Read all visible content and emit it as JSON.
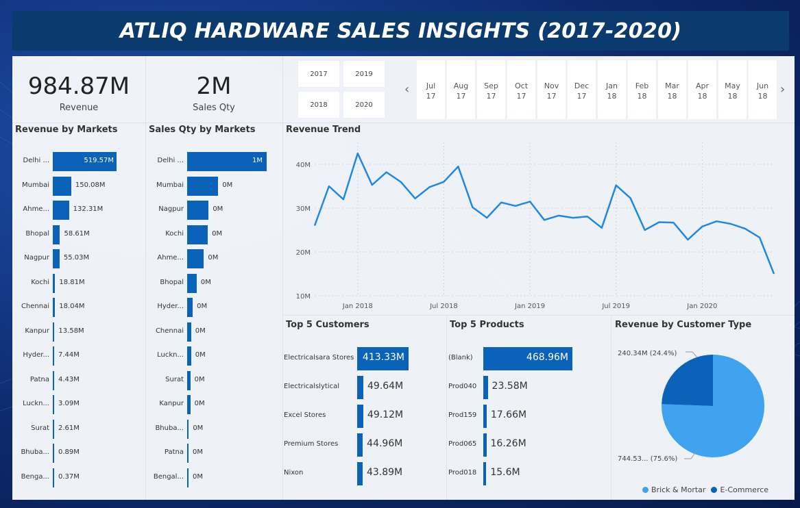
{
  "title": "ATLIQ HARDWARE SALES INSIGHTS (2017-2020)",
  "kpis": {
    "revenue": {
      "value": "984.87M",
      "label": "Revenue"
    },
    "sales_qty": {
      "value": "2M",
      "label": "Sales Qty"
    }
  },
  "year_slicer": [
    "2017",
    "2019",
    "2018",
    "2020"
  ],
  "month_slicer": [
    {
      "m": "Jul",
      "y": "17"
    },
    {
      "m": "Aug",
      "y": "17"
    },
    {
      "m": "Sep",
      "y": "17"
    },
    {
      "m": "Oct",
      "y": "17"
    },
    {
      "m": "Nov",
      "y": "17"
    },
    {
      "m": "Dec",
      "y": "17"
    },
    {
      "m": "Jan",
      "y": "18"
    },
    {
      "m": "Feb",
      "y": "18"
    },
    {
      "m": "Mar",
      "y": "18"
    },
    {
      "m": "Apr",
      "y": "18"
    },
    {
      "m": "May",
      "y": "18"
    },
    {
      "m": "Jun",
      "y": "18"
    }
  ],
  "icons": {
    "prev": "chevron-left-icon",
    "next": "chevron-right-icon"
  },
  "colors": {
    "bar": "#0a63b8",
    "line": "#1e88e5",
    "pie_brick": "#3fa3f0",
    "pie_ecom": "#0a63b8",
    "title_bg": "#0b3a6e"
  },
  "revenue_by_markets": {
    "title": "Revenue by Markets",
    "rows": [
      {
        "cat": "Delhi ...",
        "value": 519.57,
        "label": "519.57M"
      },
      {
        "cat": "Mumbai",
        "value": 150.08,
        "label": "150.08M"
      },
      {
        "cat": "Ahme...",
        "value": 132.31,
        "label": "132.31M"
      },
      {
        "cat": "Bhopal",
        "value": 58.61,
        "label": "58.61M"
      },
      {
        "cat": "Nagpur",
        "value": 55.03,
        "label": "55.03M"
      },
      {
        "cat": "Kochi",
        "value": 18.81,
        "label": "18.81M"
      },
      {
        "cat": "Chennai",
        "value": 18.04,
        "label": "18.04M"
      },
      {
        "cat": "Kanpur",
        "value": 13.58,
        "label": "13.58M"
      },
      {
        "cat": "Hyder...",
        "value": 7.44,
        "label": "7.44M"
      },
      {
        "cat": "Patna",
        "value": 4.43,
        "label": "4.43M"
      },
      {
        "cat": "Luckn...",
        "value": 3.09,
        "label": "3.09M"
      },
      {
        "cat": "Surat",
        "value": 2.61,
        "label": "2.61M"
      },
      {
        "cat": "Bhuba...",
        "value": 0.89,
        "label": "0.89M"
      },
      {
        "cat": "Benga...",
        "value": 0.37,
        "label": "0.37M"
      }
    ]
  },
  "sales_qty_by_markets": {
    "title": "Sales Qty by Markets",
    "rows": [
      {
        "cat": "Delhi ...",
        "value": 1.0,
        "label": "1M"
      },
      {
        "cat": "Mumbai",
        "value": 0.39,
        "label": "0M"
      },
      {
        "cat": "Nagpur",
        "value": 0.27,
        "label": "0M"
      },
      {
        "cat": "Kochi",
        "value": 0.26,
        "label": "0M"
      },
      {
        "cat": "Ahme...",
        "value": 0.21,
        "label": "0M"
      },
      {
        "cat": "Bhopal",
        "value": 0.12,
        "label": "0M"
      },
      {
        "cat": "Hyder...",
        "value": 0.07,
        "label": "0M"
      },
      {
        "cat": "Chennai",
        "value": 0.05,
        "label": "0M"
      },
      {
        "cat": "Luckn...",
        "value": 0.05,
        "label": "0M"
      },
      {
        "cat": "Surat",
        "value": 0.04,
        "label": "0M"
      },
      {
        "cat": "Kanpur",
        "value": 0.04,
        "label": "0M"
      },
      {
        "cat": "Bhuba...",
        "value": 0.02,
        "label": "0M"
      },
      {
        "cat": "Patna",
        "value": 0.01,
        "label": "0M"
      },
      {
        "cat": "Bengal...",
        "value": 0.01,
        "label": "0M"
      }
    ]
  },
  "top_customers": {
    "title": "Top 5 Customers",
    "rows": [
      {
        "cat": "Electricalsara Stores",
        "value": 413.33,
        "label": "413.33M"
      },
      {
        "cat": "Electricalslytical",
        "value": 49.64,
        "label": "49.64M"
      },
      {
        "cat": "Excel Stores",
        "value": 49.12,
        "label": "49.12M"
      },
      {
        "cat": "Premium Stores",
        "value": 44.96,
        "label": "44.96M"
      },
      {
        "cat": "Nixon",
        "value": 43.89,
        "label": "43.89M"
      }
    ]
  },
  "top_products": {
    "title": "Top 5 Products",
    "rows": [
      {
        "cat": "(Blank)",
        "value": 468.96,
        "label": "468.96M"
      },
      {
        "cat": "Prod040",
        "value": 23.58,
        "label": "23.58M"
      },
      {
        "cat": "Prod159",
        "value": 17.66,
        "label": "17.66M"
      },
      {
        "cat": "Prod065",
        "value": 16.26,
        "label": "16.26M"
      },
      {
        "cat": "Prod018",
        "value": 15.6,
        "label": "15.6M"
      }
    ]
  },
  "chart_data": [
    {
      "type": "line",
      "title": "Revenue Trend",
      "xlabel": "",
      "ylabel": "",
      "x": [
        "2017-10",
        "2017-11",
        "2017-12",
        "2018-01",
        "2018-02",
        "2018-03",
        "2018-04",
        "2018-05",
        "2018-06",
        "2018-07",
        "2018-08",
        "2018-09",
        "2018-10",
        "2018-11",
        "2018-12",
        "2019-01",
        "2019-02",
        "2019-03",
        "2019-04",
        "2019-05",
        "2019-06",
        "2019-07",
        "2019-08",
        "2019-09",
        "2019-10",
        "2019-11",
        "2019-12",
        "2020-01",
        "2020-02",
        "2020-03",
        "2020-04",
        "2020-05",
        "2020-06"
      ],
      "series": [
        {
          "values": [
            26,
            35,
            32,
            42.5,
            35.3,
            38.2,
            36,
            32.2,
            34.8,
            36,
            39.5,
            30.2,
            27.8,
            31.3,
            30.5,
            31.5,
            27.3,
            28.3,
            27.8,
            28.1,
            25.5,
            35.2,
            32.3,
            25,
            26.8,
            26.7,
            22.8,
            25.8,
            27,
            26.4,
            25.3,
            23.3,
            15
          ]
        }
      ],
      "y_ticks": [
        "40M",
        "30M",
        "20M",
        "10M"
      ],
      "x_ticks": [
        "Jan 2018",
        "Jul 2018",
        "Jan 2019",
        "Jul 2019",
        "Jan 2020"
      ],
      "ylim": [
        10,
        45
      ],
      "grid": true
    },
    {
      "type": "pie",
      "title": "Revenue by Customer Type",
      "slices": [
        {
          "name": "Brick & Mortar",
          "value": 744.53,
          "label": "744.53... (75.6%)"
        },
        {
          "name": "E-Commerce",
          "value": 240.34,
          "label": "240.34M (24.4%)"
        }
      ],
      "legend": "bottom"
    }
  ]
}
